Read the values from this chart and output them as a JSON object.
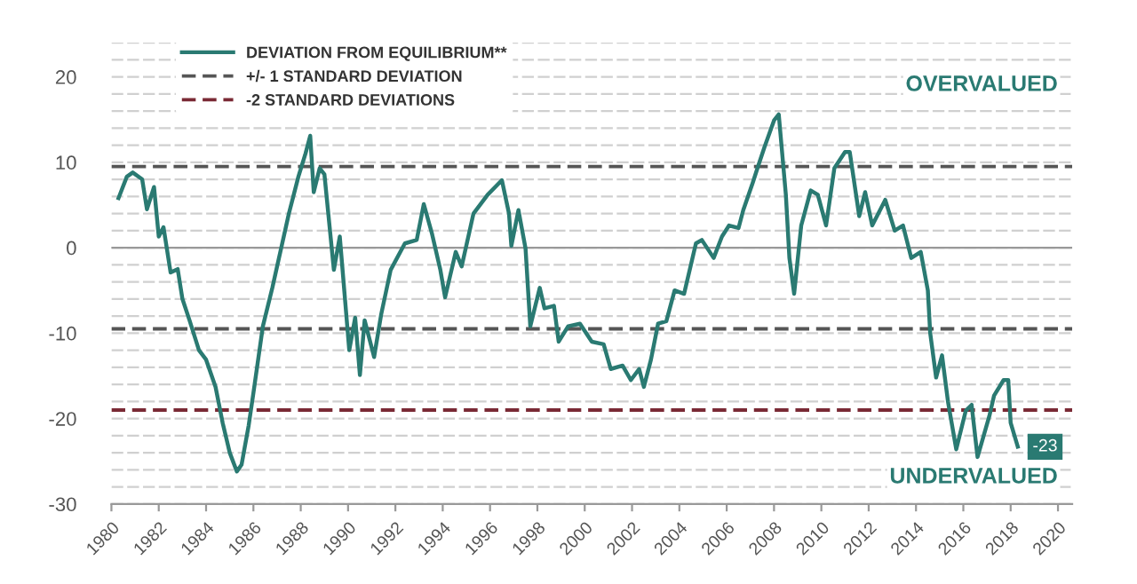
{
  "chart_data": {
    "type": "line",
    "x": [
      1980.3,
      1980.65,
      1980.9,
      1981.3,
      1981.5,
      1981.8,
      1982.0,
      1982.2,
      1982.5,
      1982.8,
      1983.0,
      1983.3,
      1983.7,
      1984.0,
      1984.4,
      1984.7,
      1985.0,
      1985.3,
      1985.5,
      1985.8,
      1986.0,
      1986.4,
      1986.8,
      1987.0,
      1987.5,
      1987.9,
      1988.2,
      1988.4,
      1988.55,
      1988.8,
      1989.0,
      1989.4,
      1989.65,
      1990.05,
      1990.3,
      1990.5,
      1990.7,
      1991.1,
      1991.4,
      1991.8,
      1992.4,
      1992.9,
      1993.2,
      1993.55,
      1993.9,
      1994.1,
      1994.55,
      1994.8,
      1995.3,
      1995.9,
      1996.5,
      1996.8,
      1996.9,
      1997.2,
      1997.5,
      1997.7,
      1998.1,
      1998.3,
      1998.7,
      1998.9,
      1999.3,
      1999.8,
      2000.3,
      2000.8,
      2001.1,
      2001.6,
      2001.95,
      2002.3,
      2002.5,
      2002.8,
      2003.1,
      2003.45,
      2003.8,
      2004.2,
      2004.7,
      2004.95,
      2005.45,
      2005.8,
      2006.1,
      2006.5,
      2006.7,
      2007.1,
      2007.3,
      2007.6,
      2008.0,
      2008.2,
      2008.5,
      2008.65,
      2008.85,
      2009.15,
      2009.55,
      2009.85,
      2010.2,
      2010.55,
      2011.0,
      2011.2,
      2011.6,
      2011.85,
      2012.15,
      2012.7,
      2013.1,
      2013.45,
      2013.8,
      2014.2,
      2014.5,
      2014.6,
      2014.85,
      2015.1,
      2015.35,
      2015.7,
      2016.1,
      2016.35,
      2016.6,
      2017.1,
      2017.3,
      2017.7,
      2017.9,
      2018.0,
      2018.3
    ],
    "series": [
      {
        "name": "DEVIATION FROM EQUILIBRIUM**",
        "color": "#2a7a72",
        "values": [
          5.8,
          8.3,
          8.8,
          8,
          4.5,
          7.1,
          1.3,
          2.4,
          -2.9,
          -2.5,
          -6,
          -8.5,
          -12,
          -13.1,
          -16.3,
          -20.5,
          -24,
          -26.2,
          -25.4,
          -20.8,
          -17,
          -9.2,
          -4.7,
          -2.2,
          4,
          8.3,
          11,
          13.1,
          6.5,
          9.3,
          8.6,
          -2.6,
          1.3,
          -12,
          -8.2,
          -14.9,
          -8.5,
          -12.8,
          -7.8,
          -2.6,
          0.5,
          0.9,
          5.1,
          1.6,
          -2.6,
          -5.8,
          -0.5,
          -2.2,
          4,
          6.2,
          7.9,
          4,
          0.2,
          4.4,
          -0.1,
          -9.2,
          -4.7,
          -7.1,
          -6.8,
          -11,
          -9.2,
          -8.9,
          -11,
          -11.3,
          -14.2,
          -13.8,
          -15.5,
          -14.2,
          -16.3,
          -13.1,
          -8.9,
          -8.6,
          -5,
          -5.4,
          0.5,
          0.9,
          -1.2,
          1.3,
          2.6,
          2.3,
          4.4,
          7.6,
          9.3,
          11.8,
          14.9,
          15.6,
          6.2,
          -1.2,
          -5.4,
          2.6,
          6.7,
          6.2,
          2.6,
          9.3,
          11.2,
          11.2,
          3.7,
          6.5,
          2.6,
          5.6,
          2,
          2.6,
          -1.2,
          -0.5,
          -5,
          -10,
          -15.2,
          -12.6,
          -18,
          -23.6,
          -19.1,
          -18.4,
          -24.5,
          -19.7,
          -17.3,
          -15.5,
          -15.5,
          -20.5,
          -23.3
        ]
      }
    ],
    "xlim": [
      1980,
      2020.6
    ],
    "xticks": [
      1980,
      1982,
      1984,
      1986,
      1988,
      1990,
      1992,
      1994,
      1996,
      1998,
      2000,
      2002,
      2004,
      2006,
      2008,
      2010,
      2012,
      2014,
      2016,
      2018,
      2020
    ],
    "ylim": [
      -30,
      24
    ],
    "yticks": [
      -30,
      {
        "value": -28,
        "label": null
      },
      {
        "value": -26,
        "label": null
      },
      {
        "value": -24,
        "label": null
      },
      {
        "value": -22,
        "label": null
      },
      -20,
      {
        "value": -18,
        "label": null
      },
      {
        "value": -16,
        "label": null
      },
      {
        "value": -14,
        "label": null
      },
      {
        "value": -12,
        "label": null
      },
      -10,
      {
        "value": -8,
        "label": null
      },
      {
        "value": -6,
        "label": null
      },
      {
        "value": -4,
        "label": null
      },
      {
        "value": -2,
        "label": null
      },
      0,
      {
        "value": 2,
        "label": null
      },
      {
        "value": 4,
        "label": null
      },
      {
        "value": 6,
        "label": null
      },
      {
        "value": 8,
        "label": null
      },
      10,
      {
        "value": 12,
        "label": null
      },
      {
        "value": 14,
        "label": null
      },
      {
        "value": 16,
        "label": null
      },
      {
        "value": 18,
        "label": null
      },
      20,
      {
        "value": 22,
        "label": null
      },
      {
        "value": 24,
        "label": null
      }
    ],
    "grid": "y",
    "ref_lines": [
      {
        "axis": "y",
        "value": 9.5,
        "label": "+/- 1 STANDARD DEVIATION",
        "color": "#555555",
        "line_style": "dashed"
      },
      {
        "axis": "y",
        "value": -9.5,
        "label": null,
        "color": "#555555",
        "line_style": "dashed"
      },
      {
        "axis": "y",
        "value": -19,
        "label": "-2 STANDARD DEVIATIONS",
        "color": "#7a2a35",
        "line_style": "dashed"
      }
    ],
    "annotations": [
      "OVERVALUED",
      "UNDERVALUED",
      {
        "text": "-23",
        "x": 2018.3,
        "y": -23.3
      }
    ],
    "legend": "top left",
    "line_style": "solid",
    "marker": "none"
  }
}
